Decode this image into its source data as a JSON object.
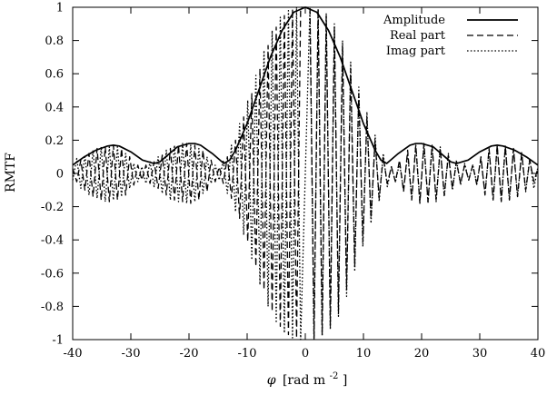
{
  "chart_data": {
    "type": "line",
    "title": "",
    "xlabel": "φ [rad m⁻²]",
    "xlabel_parts": {
      "symbol": "φ",
      "unit_prefix": "[rad m",
      "exponent": "-2",
      "unit_suffix": "]"
    },
    "ylabel": "RMTF",
    "xlim": [
      -40,
      40
    ],
    "ylim": [
      -1,
      1
    ],
    "x_ticks": [
      "-40",
      "-30",
      "-20",
      "-10",
      "0",
      "10",
      "20",
      "30",
      "40"
    ],
    "y_ticks": [
      "-1",
      "-0.8",
      "-0.6",
      "-0.4",
      "-0.2",
      "0",
      "0.2",
      "0.4",
      "0.6",
      "0.8",
      "1"
    ],
    "grid": false,
    "legend_position": "top-right",
    "series": [
      {
        "name": "Amplitude",
        "line_style": "solid",
        "color": "#000000",
        "x": [
          -40,
          -38,
          -36,
          -34,
          -33,
          -32,
          -30,
          -28,
          -26,
          -25,
          -24,
          -22,
          -20,
          -19,
          -18,
          -16,
          -14,
          -13,
          -12,
          -10,
          -8,
          -6,
          -4,
          -2,
          0,
          2,
          4,
          6,
          8,
          10,
          12,
          13,
          14,
          16,
          18,
          19,
          20,
          22,
          24,
          25,
          26,
          28,
          30,
          32,
          33,
          34,
          36,
          38,
          40
        ],
        "y": [
          0.05,
          0.1,
          0.14,
          0.165,
          0.17,
          0.165,
          0.13,
          0.08,
          0.06,
          0.07,
          0.1,
          0.16,
          0.18,
          0.18,
          0.17,
          0.12,
          0.06,
          0.08,
          0.14,
          0.3,
          0.5,
          0.7,
          0.86,
          0.97,
          1.0,
          0.97,
          0.86,
          0.7,
          0.5,
          0.3,
          0.14,
          0.08,
          0.06,
          0.12,
          0.17,
          0.18,
          0.18,
          0.16,
          0.1,
          0.07,
          0.06,
          0.08,
          0.13,
          0.165,
          0.17,
          0.165,
          0.14,
          0.1,
          0.05
        ]
      },
      {
        "name": "Real part",
        "line_style": "dashed",
        "color": "#000000",
        "x": [
          -40,
          -39.3,
          -38.6,
          -37.9,
          -37.2,
          -36.5,
          -35.8,
          -35.1,
          -34.4,
          -33.7,
          -33,
          -32.3,
          -31.6,
          -30.9,
          -30.2,
          -29.5,
          -28.8,
          -28.1,
          -27.4,
          -26.7,
          -26,
          -25.3,
          -24.6,
          -23.9,
          -23.2,
          -22.5,
          -21.8,
          -21.1,
          -20.4,
          -19.7,
          -19,
          -18.3,
          -17.6,
          -16.9,
          -16.2,
          -15.5,
          -14.8,
          -14.1,
          -13.4,
          -12.7,
          -12,
          -11.3,
          -10.6,
          -9.9,
          -9.2,
          -8.5,
          -7.8,
          -7.1,
          -6.4,
          -5.7,
          -5,
          -4.3,
          -3.6,
          -2.9,
          -2.2,
          -1.5,
          -0.8,
          0,
          0.8,
          1.5,
          2.2,
          2.9,
          3.6,
          4.3,
          5,
          5.7,
          6.4,
          7.1,
          7.8,
          8.5,
          9.2,
          9.9,
          10.6,
          11.3,
          12,
          12.7,
          13.4,
          14.1,
          14.8,
          15.5,
          16.2,
          16.9,
          17.6,
          18.3,
          19,
          19.7,
          20.4,
          21.1,
          21.8,
          22.5,
          23.2,
          23.9,
          24.6,
          25.3,
          26,
          26.7,
          27.4,
          28.1,
          28.8,
          29.5,
          30.2,
          30.9,
          31.6,
          32.3,
          33,
          33.7,
          34.4,
          35.1,
          35.8,
          36.5,
          37.2,
          37.9,
          38.6,
          39.3,
          40
        ],
        "y": [
          0.03,
          -0.05,
          0.08,
          -0.1,
          0.12,
          -0.14,
          0.15,
          -0.16,
          0.16,
          -0.17,
          0.17,
          -0.16,
          0.15,
          -0.13,
          0.1,
          -0.07,
          0.05,
          -0.04,
          0.05,
          -0.06,
          0.07,
          -0.09,
          0.11,
          -0.13,
          0.15,
          -0.16,
          0.17,
          -0.17,
          0.18,
          -0.18,
          0.17,
          -0.16,
          0.14,
          -0.11,
          0.08,
          -0.05,
          0.04,
          -0.06,
          0.1,
          -0.15,
          0.2,
          -0.27,
          0.34,
          -0.41,
          0.48,
          -0.56,
          0.63,
          -0.7,
          0.77,
          -0.83,
          0.88,
          -0.92,
          0.95,
          -0.97,
          0.99,
          -0.99,
          1.0,
          1.0,
          1.0,
          -0.99,
          0.99,
          -0.97,
          0.95,
          -0.92,
          0.88,
          -0.83,
          0.77,
          -0.7,
          0.63,
          -0.56,
          0.48,
          -0.41,
          0.34,
          -0.27,
          0.2,
          -0.15,
          0.1,
          -0.06,
          0.04,
          -0.05,
          0.08,
          -0.11,
          0.14,
          -0.16,
          0.17,
          -0.18,
          0.18,
          -0.17,
          0.17,
          -0.16,
          0.15,
          -0.13,
          0.11,
          -0.09,
          0.07,
          -0.06,
          0.05,
          -0.04,
          0.05,
          -0.07,
          0.1,
          -0.13,
          0.15,
          -0.16,
          0.17,
          -0.17,
          0.16,
          -0.16,
          0.15,
          -0.14,
          0.12,
          -0.1,
          0.08,
          -0.05,
          0.03
        ]
      },
      {
        "name": "Imag part",
        "line_style": "dotted",
        "color": "#000000",
        "x": [
          -40,
          -39.3,
          -38.6,
          -37.9,
          -37.2,
          -36.5,
          -35.8,
          -35.1,
          -34.4,
          -33.7,
          -33,
          -32.3,
          -31.6,
          -30.9,
          -30.2,
          -29.5,
          -28.8,
          -28.1,
          -27.4,
          -26.7,
          -26,
          -25.3,
          -24.6,
          -23.9,
          -23.2,
          -22.5,
          -21.8,
          -21.1,
          -20.4,
          -19.7,
          -19,
          -18.3,
          -17.6,
          -16.9,
          -16.2,
          -15.5,
          -14.8,
          -14.1,
          -13.4,
          -12.7,
          -12,
          -11.3,
          -10.6,
          -9.9,
          -9.2,
          -8.5,
          -7.8,
          -7.1,
          -6.4,
          -5.7,
          -5,
          -4.3,
          -3.6,
          -2.9,
          -2.2,
          -1.5,
          -0.8,
          0,
          0.8,
          1.5,
          2.2,
          2.9,
          3.6,
          4.3,
          5,
          5.7,
          6.4,
          7.1,
          7.8,
          8.5,
          9.2,
          9.9,
          10.6,
          11.3,
          12,
          12.7,
          13.4,
          14.1,
          14.8,
          15.5,
          16.2,
          16.9,
          17.6,
          18.3,
          19,
          19.7,
          20.4,
          21.1,
          21.8,
          22.5,
          23.2,
          23.9,
          24.6,
          25.3,
          26,
          26.7,
          27.4,
          28.1,
          28.8,
          29.5,
          30.2,
          30.9,
          31.6,
          32.3,
          33,
          33.7,
          34.4,
          35.1,
          35.8,
          36.5,
          37.2,
          37.9,
          38.6,
          39.3,
          40
        ],
        "y": [
          -0.04,
          0.09,
          -0.09,
          0.11,
          -0.13,
          0.14,
          -0.15,
          0.16,
          -0.17,
          0.16,
          -0.16,
          0.16,
          -0.14,
          0.12,
          -0.09,
          0.06,
          -0.05,
          0.04,
          -0.06,
          0.07,
          -0.08,
          0.1,
          -0.12,
          0.14,
          -0.16,
          0.17,
          -0.17,
          0.18,
          -0.18,
          0.17,
          -0.17,
          0.15,
          -0.12,
          0.1,
          -0.06,
          0.05,
          -0.04,
          0.08,
          -0.12,
          0.17,
          -0.23,
          0.3,
          -0.37,
          0.44,
          -0.52,
          0.59,
          -0.67,
          0.74,
          -0.8,
          0.86,
          -0.9,
          0.94,
          -0.96,
          0.98,
          -0.99,
          1.0,
          -1.0,
          0.0,
          1.0,
          -1.0,
          0.99,
          -0.98,
          0.96,
          -0.94,
          0.9,
          -0.86,
          0.8,
          -0.74,
          0.67,
          -0.59,
          0.52,
          -0.44,
          0.37,
          -0.3,
          0.23,
          -0.17,
          0.12,
          -0.08,
          0.04,
          -0.05,
          0.06,
          -0.1,
          0.12,
          -0.15,
          0.17,
          -0.17,
          0.18,
          -0.18,
          0.17,
          -0.17,
          0.16,
          -0.14,
          0.12,
          -0.1,
          0.08,
          -0.07,
          0.06,
          -0.04,
          0.05,
          -0.06,
          0.09,
          -0.12,
          0.14,
          -0.16,
          0.16,
          -0.16,
          0.17,
          -0.16,
          0.15,
          -0.14,
          0.13,
          -0.11,
          0.09,
          -0.09,
          0.04
        ]
      }
    ]
  }
}
